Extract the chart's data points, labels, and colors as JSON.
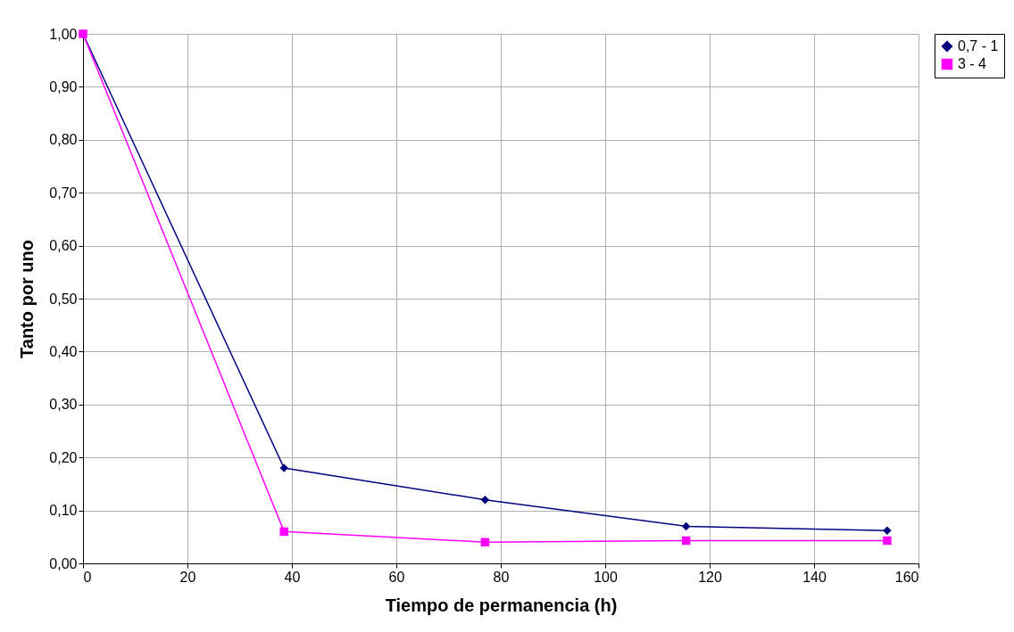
{
  "chart_data": {
    "type": "line",
    "xlabel": "Tiempo de permanencia (h)",
    "ylabel": "Tanto por uno",
    "x": [
      0,
      38.5,
      77,
      115.5,
      154
    ],
    "series": [
      {
        "name": "0,7 - 1",
        "color": "#000080",
        "marker": "diamond",
        "values": [
          1.0,
          0.18,
          0.12,
          0.07,
          0.062
        ]
      },
      {
        "name": "3 - 4",
        "color": "#ff00ff",
        "marker": "square",
        "values": [
          1.0,
          0.06,
          0.04,
          0.043,
          0.043
        ]
      }
    ],
    "xlim": [
      0,
      160
    ],
    "xticks": [
      0,
      20,
      40,
      60,
      80,
      100,
      120,
      140,
      160
    ],
    "ylim": [
      0,
      1
    ],
    "yticks": [
      {
        "value": 0,
        "label": "0,00"
      },
      {
        "value": 0.1,
        "label": "0,10"
      },
      {
        "value": 0.2,
        "label": "0,20"
      },
      {
        "value": 0.3,
        "label": "0,30"
      },
      {
        "value": 0.4,
        "label": "0,40"
      },
      {
        "value": 0.5,
        "label": "0,50"
      },
      {
        "value": 0.6,
        "label": "0,60"
      },
      {
        "value": 0.7,
        "label": "0,70"
      },
      {
        "value": 0.8,
        "label": "0,80"
      },
      {
        "value": 0.9,
        "label": "0,90"
      },
      {
        "value": 1,
        "label": "1,00"
      }
    ],
    "grid": true,
    "legend": "right",
    "line_style": "solid"
  }
}
